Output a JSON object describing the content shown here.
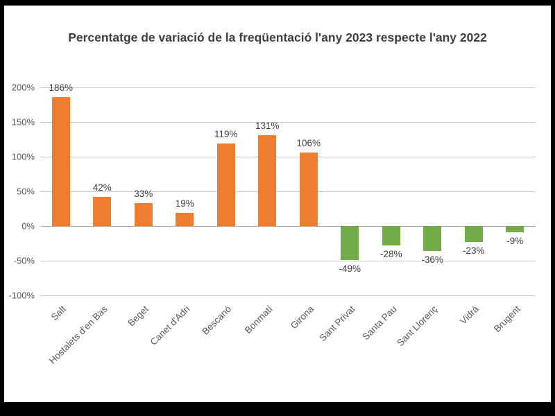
{
  "chart_data": {
    "type": "bar",
    "title": "Percentatge de variació de la freqüentació l'any 2023 respecte l'any 2022",
    "categories": [
      "Salt",
      "Hostalets d'en Bas",
      "Beget",
      "Canet d'Adri",
      "Bescanó",
      "Bonmatí",
      "Girona",
      "Sant Privat",
      "Santa Pau",
      "Sant Llorenç",
      "Vidrà",
      "Brugent"
    ],
    "values": [
      186,
      42,
      33,
      19,
      119,
      131,
      106,
      -49,
      -28,
      -36,
      -23,
      -9
    ],
    "value_labels": [
      "186%",
      "42%",
      "33%",
      "19%",
      "119%",
      "131%",
      "106%",
      "-49%",
      "-28%",
      "-36%",
      "-23%",
      "-9%"
    ],
    "ylim": [
      -100,
      200
    ],
    "yticks": [
      200,
      150,
      100,
      50,
      0,
      -50,
      -100
    ],
    "ytick_labels": [
      "200%",
      "150%",
      "100%",
      "50%",
      "0%",
      "-50%",
      "-100%"
    ],
    "grid": true,
    "legend": false,
    "xlabel": "",
    "ylabel": "",
    "positive_color": "#ED7D31",
    "negative_color": "#70AD47"
  }
}
